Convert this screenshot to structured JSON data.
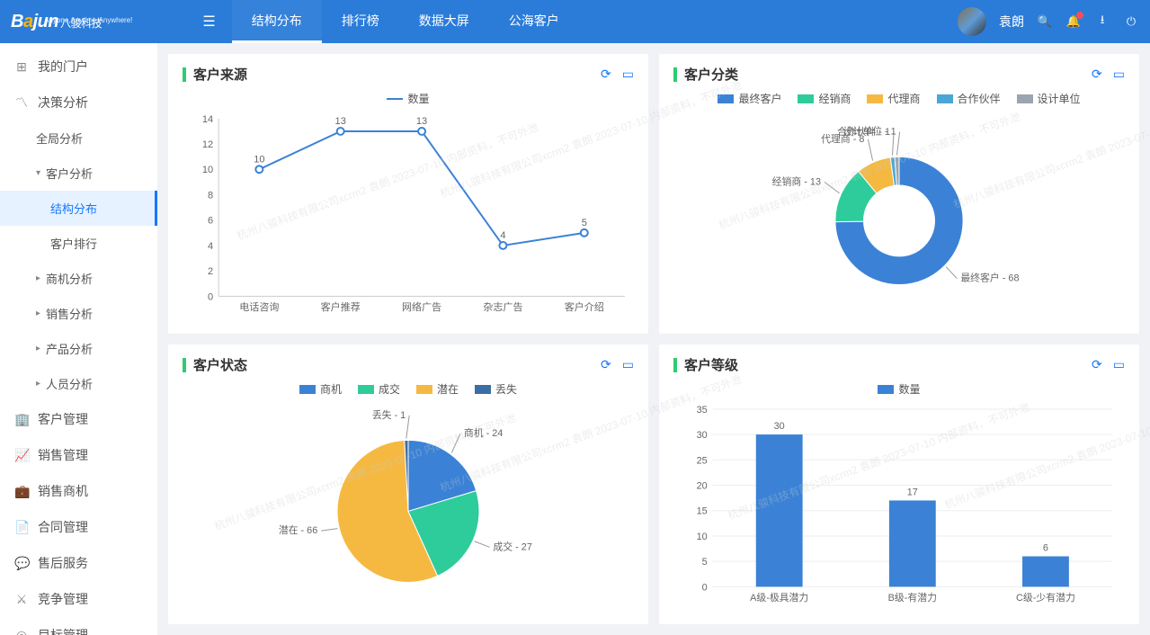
{
  "brand": {
    "name": "Bajun",
    "cn": "八骏科技",
    "tag": "Anyone,Anytime,Anywhere!"
  },
  "topTabs": [
    {
      "label": "结构分布",
      "active": true
    },
    {
      "label": "排行榜"
    },
    {
      "label": "数据大屏"
    },
    {
      "label": "公海客户"
    }
  ],
  "user": {
    "name": "袁朗"
  },
  "sidebar": [
    {
      "label": "我的门户",
      "icon": "⊞"
    },
    {
      "label": "决策分析",
      "icon": "〽"
    },
    {
      "label": "全局分析",
      "sub": true
    },
    {
      "label": "客户分析",
      "sub": true,
      "caret": "▾"
    },
    {
      "label": "结构分布",
      "subsub": true,
      "active": true
    },
    {
      "label": "客户排行",
      "subsub": true
    },
    {
      "label": "商机分析",
      "sub": true,
      "caret": "▸"
    },
    {
      "label": "销售分析",
      "sub": true,
      "caret": "▸"
    },
    {
      "label": "产品分析",
      "sub": true,
      "caret": "▸"
    },
    {
      "label": "人员分析",
      "sub": true,
      "caret": "▸"
    },
    {
      "label": "客户管理",
      "icon": "🏢"
    },
    {
      "label": "销售管理",
      "icon": "📈"
    },
    {
      "label": "销售商机",
      "icon": "💼"
    },
    {
      "label": "合同管理",
      "icon": "📄"
    },
    {
      "label": "售后服务",
      "icon": "💬"
    },
    {
      "label": "竞争管理",
      "icon": "⚔"
    },
    {
      "label": "目标管理",
      "icon": "◎"
    }
  ],
  "watermark": "杭州八骏科技有限公司xcrm2 袁朗 2023-07-10 内部资料，不可外泄",
  "cards": {
    "source": {
      "title": "客户来源",
      "legend": "数量",
      "type": "line",
      "color": "#3b82d6",
      "categories": [
        "电话咨询",
        "客户推荐",
        "网络广告",
        "杂志广告",
        "客户介绍"
      ],
      "values": [
        10,
        13,
        13,
        4,
        5
      ],
      "ylim": [
        0,
        14
      ],
      "ytick": 2
    },
    "category": {
      "title": "客户分类",
      "type": "donut",
      "legend": [
        {
          "label": "最终客户",
          "color": "#3b82d6"
        },
        {
          "label": "经销商",
          "color": "#2ecc9a"
        },
        {
          "label": "代理商",
          "color": "#f5b942"
        },
        {
          "label": "合作伙伴",
          "color": "#4aa6d6"
        },
        {
          "label": "设计单位",
          "color": "#9aa5b1"
        }
      ],
      "slices": [
        {
          "label": "最终客户",
          "value": 68,
          "color": "#3b82d6"
        },
        {
          "label": "经销商",
          "value": 13,
          "color": "#2ecc9a"
        },
        {
          "label": "代理商",
          "value": 8,
          "color": "#f5b942"
        },
        {
          "label": "合作伙伴",
          "value": 1,
          "color": "#4aa6d6"
        },
        {
          "label": "设计单位",
          "value": 1,
          "color": "#9aa5b1"
        }
      ]
    },
    "status": {
      "title": "客户状态",
      "type": "pie",
      "legend": [
        {
          "label": "商机",
          "color": "#3b82d6"
        },
        {
          "label": "成交",
          "color": "#2ecc9a"
        },
        {
          "label": "潜在",
          "color": "#f5b942"
        },
        {
          "label": "丢失",
          "color": "#3b6fa3"
        }
      ],
      "slices": [
        {
          "label": "商机",
          "value": 24,
          "color": "#3b82d6"
        },
        {
          "label": "成交",
          "value": 27,
          "color": "#2ecc9a"
        },
        {
          "label": "潜在",
          "value": 66,
          "color": "#f5b942"
        },
        {
          "label": "丢失",
          "value": 1,
          "color": "#3b6fa3"
        }
      ]
    },
    "level": {
      "title": "客户等级",
      "legend": "数量",
      "type": "bar",
      "color": "#3b82d6",
      "categories": [
        "A级-极具潜力",
        "B级-有潜力",
        "C级-少有潜力"
      ],
      "values": [
        30,
        17,
        6
      ],
      "ylim": [
        0,
        35
      ],
      "ytick": 5
    }
  }
}
